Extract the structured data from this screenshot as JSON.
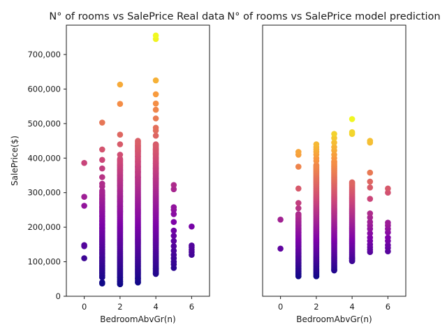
{
  "chart_data": [
    {
      "type": "scatter",
      "title": "N° of rooms vs SalePrice Real data",
      "xlabel": "BedroomAbvGr(n)",
      "ylabel": "SalePrice($)",
      "xlim": [
        -1,
        7
      ],
      "ylim": [
        0,
        785000
      ],
      "xticks": [
        0,
        2,
        4,
        6
      ],
      "xtick_labels": [
        "0",
        "2",
        "4",
        "6"
      ],
      "yticks": [
        0,
        100000,
        200000,
        300000,
        400000,
        500000,
        600000,
        700000
      ],
      "ytick_labels": [
        "0",
        "100,000",
        "200,000",
        "300,000",
        "400,000",
        "500,000",
        "600,000",
        "700,000"
      ],
      "colormap": "plasma",
      "color_range": [
        35000,
        755000
      ],
      "grid": false,
      "points": [
        {
          "x": 0,
          "y": 110000
        },
        {
          "x": 0,
          "y": 145000
        },
        {
          "x": 0,
          "y": 148000
        },
        {
          "x": 0,
          "y": 262000
        },
        {
          "x": 0,
          "y": 288000
        },
        {
          "x": 0,
          "y": 386000
        },
        {
          "x": 1,
          "y": 37000
        },
        {
          "x": 1,
          "y": 40000
        },
        {
          "x": 1,
          "y": 55000
        },
        {
          "x": 1,
          "y": 60000
        },
        {
          "x": 1,
          "y": 68000
        },
        {
          "x": 1,
          "y": 75000
        },
        {
          "x": 1,
          "y": 82000
        },
        {
          "x": 1,
          "y": 88000
        },
        {
          "x": 1,
          "y": 95000
        },
        {
          "x": 1,
          "y": 102000
        },
        {
          "x": 1,
          "y": 112000
        },
        {
          "x": 1,
          "y": 125000
        },
        {
          "x": 1,
          "y": 135000
        },
        {
          "x": 1,
          "y": 142000
        },
        {
          "x": 1,
          "y": 150000
        },
        {
          "x": 1,
          "y": 158000
        },
        {
          "x": 1,
          "y": 165000
        },
        {
          "x": 1,
          "y": 172000
        },
        {
          "x": 1,
          "y": 180000
        },
        {
          "x": 1,
          "y": 188000
        },
        {
          "x": 1,
          "y": 197000
        },
        {
          "x": 1,
          "y": 208000
        },
        {
          "x": 1,
          "y": 218000
        },
        {
          "x": 1,
          "y": 232000
        },
        {
          "x": 1,
          "y": 245000
        },
        {
          "x": 1,
          "y": 258000
        },
        {
          "x": 1,
          "y": 270000
        },
        {
          "x": 1,
          "y": 282000
        },
        {
          "x": 1,
          "y": 292000
        },
        {
          "x": 1,
          "y": 305000
        },
        {
          "x": 1,
          "y": 318000
        },
        {
          "x": 1,
          "y": 326000
        },
        {
          "x": 1,
          "y": 345000
        },
        {
          "x": 1,
          "y": 370000
        },
        {
          "x": 1,
          "y": 395000
        },
        {
          "x": 1,
          "y": 425000
        },
        {
          "x": 1,
          "y": 503000
        },
        {
          "x": 2,
          "y": 35000
        },
        {
          "x": 2,
          "y": 43000
        },
        {
          "x": 2,
          "y": 55000
        },
        {
          "x": 2,
          "y": 245000
        },
        {
          "x": 2,
          "y": 260000
        },
        {
          "x": 2,
          "y": 275000
        },
        {
          "x": 2,
          "y": 290000
        },
        {
          "x": 2,
          "y": 305000
        },
        {
          "x": 2,
          "y": 320000
        },
        {
          "x": 2,
          "y": 335000
        },
        {
          "x": 2,
          "y": 350000
        },
        {
          "x": 2,
          "y": 365000
        },
        {
          "x": 2,
          "y": 380000
        },
        {
          "x": 2,
          "y": 395000
        },
        {
          "x": 2,
          "y": 410000
        },
        {
          "x": 2,
          "y": 440000
        },
        {
          "x": 2,
          "y": 468000
        },
        {
          "x": 2,
          "y": 557000
        },
        {
          "x": 2,
          "y": 613000
        },
        {
          "x": 3,
          "y": 40000
        },
        {
          "x": 3,
          "y": 52000
        },
        {
          "x": 3,
          "y": 345000
        },
        {
          "x": 3,
          "y": 360000
        },
        {
          "x": 3,
          "y": 375000
        },
        {
          "x": 3,
          "y": 390000
        },
        {
          "x": 3,
          "y": 405000
        },
        {
          "x": 3,
          "y": 420000
        },
        {
          "x": 3,
          "y": 435000
        },
        {
          "x": 3,
          "y": 450000
        },
        {
          "x": 4,
          "y": 65000
        },
        {
          "x": 4,
          "y": 80000
        },
        {
          "x": 4,
          "y": 340000
        },
        {
          "x": 4,
          "y": 355000
        },
        {
          "x": 4,
          "y": 370000
        },
        {
          "x": 4,
          "y": 385000
        },
        {
          "x": 4,
          "y": 400000
        },
        {
          "x": 4,
          "y": 412000
        },
        {
          "x": 4,
          "y": 425000
        },
        {
          "x": 4,
          "y": 438000
        },
        {
          "x": 4,
          "y": 465000
        },
        {
          "x": 4,
          "y": 480000
        },
        {
          "x": 4,
          "y": 488000
        },
        {
          "x": 4,
          "y": 515000
        },
        {
          "x": 4,
          "y": 540000
        },
        {
          "x": 4,
          "y": 558000
        },
        {
          "x": 4,
          "y": 585000
        },
        {
          "x": 4,
          "y": 625000
        },
        {
          "x": 4,
          "y": 745000
        },
        {
          "x": 4,
          "y": 755000
        },
        {
          "x": 5,
          "y": 82000
        },
        {
          "x": 5,
          "y": 92000
        },
        {
          "x": 5,
          "y": 100000
        },
        {
          "x": 5,
          "y": 110000
        },
        {
          "x": 5,
          "y": 120000
        },
        {
          "x": 5,
          "y": 132000
        },
        {
          "x": 5,
          "y": 145000
        },
        {
          "x": 5,
          "y": 160000
        },
        {
          "x": 5,
          "y": 175000
        },
        {
          "x": 5,
          "y": 190000
        },
        {
          "x": 5,
          "y": 215000
        },
        {
          "x": 5,
          "y": 238000
        },
        {
          "x": 5,
          "y": 250000
        },
        {
          "x": 5,
          "y": 258000
        },
        {
          "x": 5,
          "y": 310000
        },
        {
          "x": 5,
          "y": 322000
        },
        {
          "x": 6,
          "y": 120000
        },
        {
          "x": 6,
          "y": 128000
        },
        {
          "x": 6,
          "y": 135000
        },
        {
          "x": 6,
          "y": 142000
        },
        {
          "x": 6,
          "y": 147000
        },
        {
          "x": 6,
          "y": 202000
        }
      ],
      "dense_ranges": [
        {
          "x": 1,
          "from": 55000,
          "to": 300000,
          "step": 5000
        },
        {
          "x": 2,
          "from": 35000,
          "to": 400000,
          "step": 3000
        },
        {
          "x": 3,
          "from": 40000,
          "to": 450000,
          "step": 3000
        },
        {
          "x": 4,
          "from": 65000,
          "to": 440000,
          "step": 3000
        }
      ]
    },
    {
      "type": "scatter",
      "title": "N° of rooms vs SalePrice model prediction",
      "xlabel": "BedroomAbvGr(n)",
      "ylabel": "",
      "xlim": [
        -1,
        7
      ],
      "ylim": [
        0,
        785000
      ],
      "xticks": [
        0,
        2,
        4,
        6
      ],
      "xtick_labels": [
        "0",
        "2",
        "4",
        "6"
      ],
      "yticks": [],
      "colormap": "plasma",
      "color_range": [
        55000,
        515000
      ],
      "grid": false,
      "points": [
        {
          "x": 0,
          "y": 138000
        },
        {
          "x": 0,
          "y": 222000
        },
        {
          "x": 1,
          "y": 58000
        },
        {
          "x": 1,
          "y": 65000
        },
        {
          "x": 1,
          "y": 72000
        },
        {
          "x": 1,
          "y": 80000
        },
        {
          "x": 1,
          "y": 88000
        },
        {
          "x": 1,
          "y": 96000
        },
        {
          "x": 1,
          "y": 105000
        },
        {
          "x": 1,
          "y": 115000
        },
        {
          "x": 1,
          "y": 125000
        },
        {
          "x": 1,
          "y": 135000
        },
        {
          "x": 1,
          "y": 145000
        },
        {
          "x": 1,
          "y": 155000
        },
        {
          "x": 1,
          "y": 165000
        },
        {
          "x": 1,
          "y": 175000
        },
        {
          "x": 1,
          "y": 185000
        },
        {
          "x": 1,
          "y": 195000
        },
        {
          "x": 1,
          "y": 205000
        },
        {
          "x": 1,
          "y": 215000
        },
        {
          "x": 1,
          "y": 225000
        },
        {
          "x": 1,
          "y": 235000
        },
        {
          "x": 1,
          "y": 255000
        },
        {
          "x": 1,
          "y": 270000
        },
        {
          "x": 1,
          "y": 312000
        },
        {
          "x": 1,
          "y": 375000
        },
        {
          "x": 1,
          "y": 410000
        },
        {
          "x": 1,
          "y": 418000
        },
        {
          "x": 2,
          "y": 58000
        },
        {
          "x": 2,
          "y": 380000
        },
        {
          "x": 2,
          "y": 392000
        },
        {
          "x": 2,
          "y": 400000
        },
        {
          "x": 2,
          "y": 410000
        },
        {
          "x": 2,
          "y": 418000
        },
        {
          "x": 2,
          "y": 425000
        },
        {
          "x": 2,
          "y": 432000
        },
        {
          "x": 2,
          "y": 440000
        },
        {
          "x": 3,
          "y": 75000
        },
        {
          "x": 3,
          "y": 390000
        },
        {
          "x": 3,
          "y": 400000
        },
        {
          "x": 3,
          "y": 410000
        },
        {
          "x": 3,
          "y": 422000
        },
        {
          "x": 3,
          "y": 432000
        },
        {
          "x": 3,
          "y": 445000
        },
        {
          "x": 3,
          "y": 458000
        },
        {
          "x": 3,
          "y": 470000
        },
        {
          "x": 4,
          "y": 102000
        },
        {
          "x": 4,
          "y": 110000
        },
        {
          "x": 4,
          "y": 470000
        },
        {
          "x": 4,
          "y": 475000
        },
        {
          "x": 4,
          "y": 513000
        },
        {
          "x": 5,
          "y": 128000
        },
        {
          "x": 5,
          "y": 135000
        },
        {
          "x": 5,
          "y": 142000
        },
        {
          "x": 5,
          "y": 150000
        },
        {
          "x": 5,
          "y": 160000
        },
        {
          "x": 5,
          "y": 170000
        },
        {
          "x": 5,
          "y": 182000
        },
        {
          "x": 5,
          "y": 195000
        },
        {
          "x": 5,
          "y": 205000
        },
        {
          "x": 5,
          "y": 215000
        },
        {
          "x": 5,
          "y": 228000
        },
        {
          "x": 5,
          "y": 240000
        },
        {
          "x": 5,
          "y": 282000
        },
        {
          "x": 5,
          "y": 315000
        },
        {
          "x": 5,
          "y": 332000
        },
        {
          "x": 5,
          "y": 358000
        },
        {
          "x": 5,
          "y": 445000
        },
        {
          "x": 5,
          "y": 450000
        },
        {
          "x": 6,
          "y": 130000
        },
        {
          "x": 6,
          "y": 140000
        },
        {
          "x": 6,
          "y": 148000
        },
        {
          "x": 6,
          "y": 160000
        },
        {
          "x": 6,
          "y": 170000
        },
        {
          "x": 6,
          "y": 185000
        },
        {
          "x": 6,
          "y": 195000
        },
        {
          "x": 6,
          "y": 205000
        },
        {
          "x": 6,
          "y": 213000
        },
        {
          "x": 6,
          "y": 300000
        },
        {
          "x": 6,
          "y": 312000
        }
      ],
      "dense_ranges": [
        {
          "x": 1,
          "from": 58000,
          "to": 240000,
          "step": 4000
        },
        {
          "x": 2,
          "from": 58000,
          "to": 380000,
          "step": 3000
        },
        {
          "x": 3,
          "from": 75000,
          "to": 390000,
          "step": 3000
        },
        {
          "x": 4,
          "from": 102000,
          "to": 330000,
          "step": 3000
        }
      ]
    }
  ]
}
